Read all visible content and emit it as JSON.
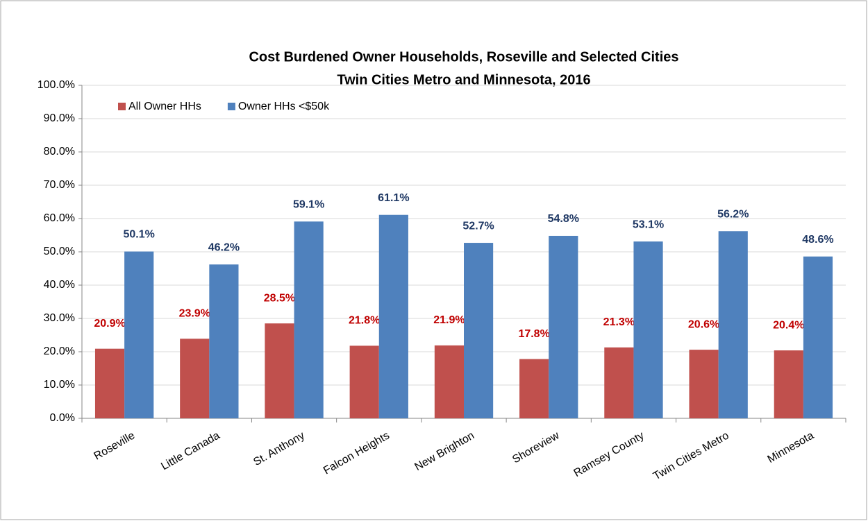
{
  "chart_data": {
    "type": "bar",
    "title": "Cost Burdened Owner Households, Roseville and Selected Cities",
    "subtitle": "Twin Cities Metro and Minnesota, 2016",
    "categories": [
      "Roseville",
      "Little Canada",
      "St. Anthony",
      "Falcon Heights",
      "New Brighton",
      "Shoreview",
      "Ramsey County",
      "Twin Cities Metro",
      "Minnesota"
    ],
    "series": [
      {
        "name": "All Owner HHs",
        "color": "#c0504d",
        "label_color": "#c00000",
        "values": [
          20.9,
          23.9,
          28.5,
          21.8,
          21.9,
          17.8,
          21.3,
          20.6,
          20.4
        ],
        "value_labels": [
          "20.9%",
          "23.9%",
          "28.5%",
          "21.8%",
          "21.9%",
          "17.8%",
          "21.3%",
          "20.6%",
          "20.4%"
        ]
      },
      {
        "name": "Owner HHs <$50k",
        "color": "#4f81bd",
        "label_color": "#1f3864",
        "values": [
          50.1,
          46.2,
          59.1,
          61.1,
          52.7,
          54.8,
          53.1,
          56.2,
          48.6
        ],
        "value_labels": [
          "50.1%",
          "46.2%",
          "59.1%",
          "61.1%",
          "52.7%",
          "54.8%",
          "53.1%",
          "56.2%",
          "48.6%"
        ]
      }
    ],
    "ylim": [
      0,
      100
    ],
    "yticks": [
      {
        "value": 0,
        "label": "0.0%"
      },
      {
        "value": 10,
        "label": "10.0%"
      },
      {
        "value": 20,
        "label": "20.0%"
      },
      {
        "value": 30,
        "label": "30.0%"
      },
      {
        "value": 40,
        "label": "40.0%"
      },
      {
        "value": 50,
        "label": "50.0%"
      },
      {
        "value": 60,
        "label": "60.0%"
      },
      {
        "value": 70,
        "label": "70.0%"
      },
      {
        "value": 80,
        "label": "80.0%"
      },
      {
        "value": 90,
        "label": "90.0%"
      },
      {
        "value": 100,
        "label": "100.0%"
      }
    ],
    "grid": true,
    "legend": "top-left"
  }
}
